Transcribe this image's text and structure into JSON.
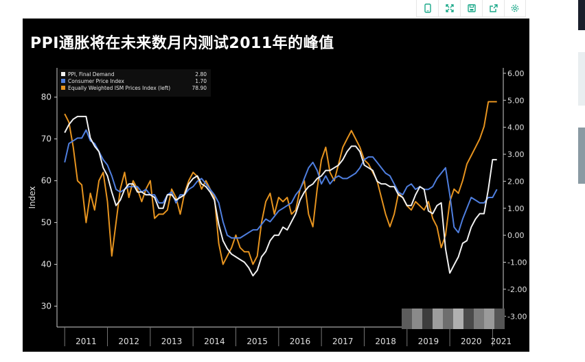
{
  "toolbar": {
    "icons": [
      "phone-icon",
      "expand-icon",
      "save-icon",
      "share-icon",
      "settings-icon"
    ],
    "color": "#1aa889"
  },
  "figure": {
    "title": "PPI通胀将在未来数月内测试2011年的峰值"
  },
  "colors": {
    "ppi": "#f2f2f2",
    "cpi": "#4f7fe0",
    "ism": "#e7941f",
    "axis": "#d0d0d0",
    "background": "#000000"
  },
  "chart_data": {
    "type": "line",
    "title": "PPI通胀将在未来数月内测试2011年的峰值",
    "xlabel": "",
    "ylabel": "Index",
    "x_ticks": [
      "2011",
      "2012",
      "2013",
      "2014",
      "2015",
      "2016",
      "2017",
      "2018",
      "2019",
      "2020",
      "2021"
    ],
    "ylim_left": [
      25,
      87
    ],
    "left_ticks": [
      "30",
      "40",
      "50",
      "60",
      "70",
      "80"
    ],
    "ylim_right": [
      -3.4,
      6.2
    ],
    "right_ticks": [
      "6.00",
      "5.00",
      "4.00",
      "3.00",
      "2.00",
      "1.00",
      "0.00",
      "-1.00",
      "-2.00",
      "-3.00"
    ],
    "legend_position": "top-left",
    "legend": [
      {
        "name": "PPI, Final Demand",
        "value": "2.80"
      },
      {
        "name": "Consumer Price Index",
        "value": "1.70"
      },
      {
        "name": "Equally Weighted ISM Prices Index (left)",
        "value": "78.90"
      }
    ],
    "series": [
      {
        "name": "PPI, Final Demand",
        "axis": "right",
        "x": [
          2011.0,
          2011.1,
          2011.2,
          2011.3,
          2011.4,
          2011.5,
          2011.6,
          2011.7,
          2011.8,
          2011.9,
          2012.0,
          2012.1,
          2012.2,
          2012.3,
          2012.4,
          2012.5,
          2012.6,
          2012.7,
          2012.8,
          2012.9,
          2013.0,
          2013.1,
          2013.2,
          2013.3,
          2013.4,
          2013.5,
          2013.6,
          2013.7,
          2013.8,
          2013.9,
          2014.0,
          2014.1,
          2014.2,
          2014.3,
          2014.4,
          2014.5,
          2014.6,
          2014.7,
          2014.8,
          2014.9,
          2015.0,
          2015.1,
          2015.2,
          2015.3,
          2015.4,
          2015.5,
          2015.6,
          2015.7,
          2015.8,
          2015.9,
          2016.0,
          2016.1,
          2016.2,
          2016.3,
          2016.4,
          2016.5,
          2016.6,
          2016.7,
          2016.8,
          2016.9,
          2017.0,
          2017.1,
          2017.2,
          2017.3,
          2017.4,
          2017.5,
          2017.6,
          2017.7,
          2017.8,
          2017.9,
          2018.0,
          2018.1,
          2018.2,
          2018.3,
          2018.4,
          2018.5,
          2018.6,
          2018.7,
          2018.8,
          2018.9,
          2019.0,
          2019.1,
          2019.2,
          2019.3,
          2019.4,
          2019.5,
          2019.6,
          2019.7,
          2019.8,
          2019.9,
          2020.0,
          2020.1,
          2020.2,
          2020.3,
          2020.4,
          2020.5,
          2020.6,
          2020.7,
          2020.8,
          2020.9,
          2021.0,
          2021.1
        ],
        "y": [
          3.8,
          4.1,
          4.3,
          4.4,
          4.4,
          4.4,
          3.6,
          3.3,
          3.1,
          2.5,
          2.2,
          1.6,
          1.1,
          1.3,
          1.7,
          1.9,
          1.9,
          1.6,
          1.6,
          1.5,
          1.5,
          1.4,
          1.0,
          1.0,
          1.5,
          1.5,
          1.3,
          1.4,
          1.5,
          1.9,
          2.1,
          2.2,
          1.9,
          1.8,
          1.6,
          1.3,
          0.4,
          -0.2,
          -0.5,
          -0.7,
          -0.8,
          -0.9,
          -1.0,
          -1.2,
          -1.5,
          -1.3,
          -0.8,
          -0.6,
          -0.2,
          0.0,
          0.0,
          0.3,
          0.2,
          0.5,
          0.8,
          1.3,
          1.6,
          1.8,
          1.9,
          2.1,
          2.2,
          2.4,
          2.4,
          2.5,
          2.6,
          2.8,
          3.1,
          3.3,
          3.3,
          3.1,
          2.6,
          2.5,
          2.4,
          2.0,
          1.9,
          1.9,
          1.8,
          1.8,
          1.5,
          1.4,
          1.1,
          1.1,
          1.5,
          1.8,
          1.7,
          0.9,
          0.8,
          1.1,
          1.2,
          -0.5,
          -1.4,
          -1.1,
          -0.8,
          -0.3,
          -0.2,
          0.3,
          0.6,
          0.8,
          0.8,
          1.7,
          2.8,
          2.8
        ]
      },
      {
        "name": "Consumer Price Index",
        "axis": "right",
        "x": [
          2011.0,
          2011.1,
          2011.2,
          2011.3,
          2011.4,
          2011.5,
          2011.6,
          2011.7,
          2011.8,
          2011.9,
          2012.0,
          2012.1,
          2012.2,
          2012.3,
          2012.4,
          2012.5,
          2012.6,
          2012.7,
          2012.8,
          2012.9,
          2013.0,
          2013.1,
          2013.2,
          2013.3,
          2013.4,
          2013.5,
          2013.6,
          2013.7,
          2013.8,
          2013.9,
          2014.0,
          2014.1,
          2014.2,
          2014.3,
          2014.4,
          2014.5,
          2014.6,
          2014.7,
          2014.8,
          2014.9,
          2015.0,
          2015.1,
          2015.2,
          2015.3,
          2015.4,
          2015.5,
          2015.6,
          2015.7,
          2015.8,
          2015.9,
          2016.0,
          2016.1,
          2016.2,
          2016.3,
          2016.4,
          2016.5,
          2016.6,
          2016.7,
          2016.8,
          2016.9,
          2017.0,
          2017.1,
          2017.2,
          2017.3,
          2017.4,
          2017.5,
          2017.6,
          2017.7,
          2017.8,
          2017.9,
          2018.0,
          2018.1,
          2018.2,
          2018.3,
          2018.4,
          2018.5,
          2018.6,
          2018.7,
          2018.8,
          2018.9,
          2019.0,
          2019.1,
          2019.2,
          2019.3,
          2019.4,
          2019.5,
          2019.6,
          2019.7,
          2019.8,
          2019.9,
          2020.0,
          2020.1,
          2020.2,
          2020.3,
          2020.4,
          2020.5,
          2020.6,
          2020.7,
          2020.8,
          2020.9,
          2021.0,
          2021.1
        ],
        "y": [
          2.7,
          3.4,
          3.5,
          3.6,
          3.6,
          3.9,
          3.5,
          3.4,
          3.1,
          2.8,
          2.6,
          2.2,
          1.7,
          1.6,
          1.7,
          1.8,
          1.8,
          1.8,
          1.6,
          1.7,
          1.5,
          1.5,
          1.2,
          1.2,
          1.5,
          1.6,
          1.2,
          1.5,
          1.5,
          1.7,
          1.8,
          2.0,
          2.1,
          1.9,
          1.7,
          1.5,
          1.2,
          0.5,
          0.0,
          -0.1,
          -0.1,
          -0.1,
          0.0,
          0.1,
          0.2,
          0.2,
          0.4,
          0.6,
          0.5,
          0.7,
          0.9,
          1.0,
          1.1,
          1.2,
          1.5,
          1.7,
          2.1,
          2.5,
          2.7,
          2.4,
          1.9,
          2.2,
          1.9,
          2.1,
          2.2,
          2.1,
          2.1,
          2.2,
          2.3,
          2.5,
          2.8,
          2.9,
          2.9,
          2.7,
          2.5,
          2.3,
          2.2,
          1.9,
          1.6,
          1.5,
          1.8,
          1.9,
          1.7,
          1.8,
          1.7,
          1.7,
          1.8,
          2.1,
          2.3,
          2.5,
          1.5,
          0.3,
          0.1,
          0.6,
          1.0,
          1.4,
          1.3,
          1.2,
          1.2,
          1.4,
          1.4,
          1.7
        ]
      },
      {
        "name": "Equally Weighted ISM Prices Index (left)",
        "axis": "left",
        "x": [
          2011.0,
          2011.1,
          2011.2,
          2011.3,
          2011.4,
          2011.5,
          2011.6,
          2011.7,
          2011.8,
          2011.9,
          2012.0,
          2012.1,
          2012.2,
          2012.3,
          2012.4,
          2012.5,
          2012.6,
          2012.7,
          2012.8,
          2012.9,
          2013.0,
          2013.1,
          2013.2,
          2013.3,
          2013.4,
          2013.5,
          2013.6,
          2013.7,
          2013.8,
          2013.9,
          2014.0,
          2014.1,
          2014.2,
          2014.3,
          2014.4,
          2014.5,
          2014.6,
          2014.7,
          2014.8,
          2014.9,
          2015.0,
          2015.1,
          2015.2,
          2015.3,
          2015.4,
          2015.5,
          2015.6,
          2015.7,
          2015.8,
          2015.9,
          2016.0,
          2016.1,
          2016.2,
          2016.3,
          2016.4,
          2016.5,
          2016.6,
          2016.7,
          2016.8,
          2016.9,
          2017.0,
          2017.1,
          2017.2,
          2017.3,
          2017.4,
          2017.5,
          2017.6,
          2017.7,
          2017.8,
          2017.9,
          2018.0,
          2018.1,
          2018.2,
          2018.3,
          2018.4,
          2018.5,
          2018.6,
          2018.7,
          2018.8,
          2018.9,
          2019.0,
          2019.1,
          2019.2,
          2019.3,
          2019.4,
          2019.5,
          2019.6,
          2019.7,
          2019.8,
          2019.9,
          2020.0,
          2020.1,
          2020.2,
          2020.3,
          2020.4,
          2020.5,
          2020.6,
          2020.7,
          2020.8,
          2020.9,
          2021.0,
          2021.1
        ],
        "y": [
          76,
          74,
          68,
          60,
          59,
          50,
          57,
          53,
          60,
          62,
          55,
          42,
          50,
          58,
          62,
          56,
          60,
          58,
          55,
          58,
          60,
          51,
          52,
          52,
          53,
          58,
          56,
          52,
          57,
          60,
          62,
          61,
          58,
          60,
          58,
          56,
          45,
          40,
          42,
          44,
          47,
          44,
          43,
          43,
          40,
          42,
          50,
          55,
          57,
          52,
          56,
          55,
          56,
          52,
          53,
          58,
          60,
          52,
          49,
          58,
          65,
          68,
          62,
          60,
          64,
          68,
          70,
          72,
          70,
          68,
          65,
          64,
          62,
          60,
          56,
          52,
          49,
          52,
          57,
          56,
          54,
          53,
          55,
          54,
          53,
          55,
          51,
          49,
          44,
          47,
          55,
          58,
          57,
          60,
          64,
          66,
          68,
          70,
          73,
          78.9,
          78.9,
          78.9
        ]
      }
    ]
  }
}
